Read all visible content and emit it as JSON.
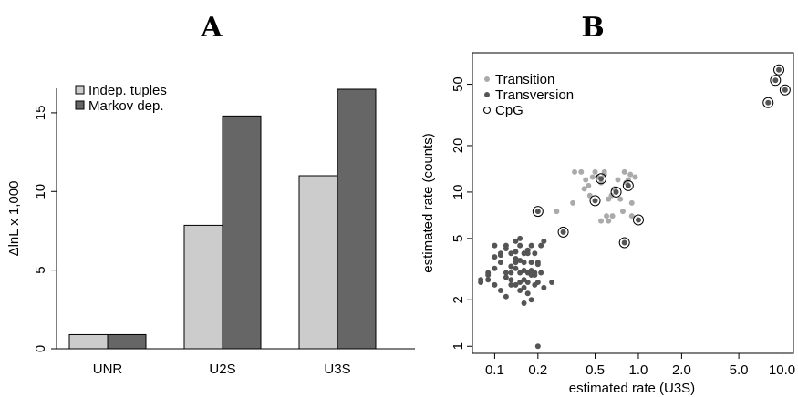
{
  "panels": {
    "a_label": "A",
    "b_label": "B"
  },
  "chart_data": [
    {
      "type": "bar",
      "panel": "A",
      "categories": [
        "UNR",
        "U2S",
        "U3S"
      ],
      "series": [
        {
          "name": "Indep. tuples",
          "values": [
            0.9,
            7.85,
            11.0
          ],
          "color": "#cccccc"
        },
        {
          "name": "Markov dep.",
          "values": [
            0.9,
            14.8,
            16.5
          ],
          "color": "#666666"
        }
      ],
      "ylabel": "ΔlnL x 1,000",
      "ylim": [
        0,
        16.5
      ],
      "yticks": [
        "0",
        "5",
        "10",
        "15"
      ],
      "grid": false,
      "legend_position": "top-left"
    },
    {
      "type": "scatter",
      "panel": "B",
      "xlabel": "estimated rate (U3S)",
      "ylabel": "estimated rate (counts)",
      "xscale": "log",
      "yscale": "log",
      "xlim": [
        0.07,
        12
      ],
      "ylim": [
        0.9,
        80
      ],
      "xticks": [
        "0.1",
        "0.2",
        "0.5",
        "1.0",
        "2.0",
        "5.0",
        "10.0"
      ],
      "yticks": [
        "1",
        "2",
        "5",
        "10",
        "20",
        "50"
      ],
      "grid": false,
      "legend_position": "top-left",
      "colors": {
        "transition": "#aaaaaa",
        "transversion": "#555555",
        "cpg_ring": "#000000"
      },
      "series": [
        {
          "name": "Transition",
          "marker": "filled-circle",
          "color": "#aaaaaa",
          "x": [
            0.35,
            0.36,
            0.4,
            0.42,
            0.45,
            0.46,
            0.48,
            0.5,
            0.52,
            0.55,
            0.58,
            0.6,
            0.62,
            0.65,
            0.68,
            0.7,
            0.75,
            0.78,
            0.8,
            0.82,
            0.85,
            0.88,
            0.9,
            0.95,
            0.43,
            0.55,
            0.62,
            0.72,
            0.9,
            0.58,
            0.66,
            0.27
          ],
          "y": [
            8.5,
            13.5,
            13.5,
            10.5,
            11.0,
            9.5,
            12.5,
            13.5,
            12.5,
            11.5,
            13.5,
            7.0,
            6.5,
            9.5,
            10.5,
            10.0,
            9.0,
            7.5,
            13.5,
            11.5,
            12.0,
            13.0,
            8.5,
            12.5,
            12.0,
            6.5,
            9.0,
            12.0,
            7.0,
            13.0,
            7.0,
            7.5
          ]
        },
        {
          "name": "Transversion",
          "marker": "filled-circle",
          "color": "#555555",
          "x": [
            0.08,
            0.08,
            0.09,
            0.09,
            0.1,
            0.1,
            0.1,
            0.11,
            0.11,
            0.11,
            0.12,
            0.12,
            0.12,
            0.13,
            0.13,
            0.13,
            0.14,
            0.14,
            0.14,
            0.14,
            0.15,
            0.15,
            0.15,
            0.15,
            0.16,
            0.16,
            0.16,
            0.16,
            0.17,
            0.17,
            0.17,
            0.17,
            0.18,
            0.18,
            0.18,
            0.18,
            0.19,
            0.19,
            0.19,
            0.2,
            0.2,
            0.2,
            0.21,
            0.21,
            0.22,
            0.22,
            0.25,
            0.1,
            0.12,
            0.13,
            0.15,
            0.17,
            0.19,
            0.14,
            0.16,
            0.11,
            0.13,
            0.09,
            0.2,
            0.15,
            0.18,
            0.12,
            0.14,
            0.16
          ],
          "y": [
            2.6,
            2.7,
            2.7,
            3.0,
            2.5,
            3.2,
            4.5,
            4.0,
            3.5,
            2.3,
            4.5,
            3.0,
            2.1,
            2.5,
            3.0,
            4.0,
            3.5,
            2.5,
            4.8,
            3.2,
            3.0,
            4.5,
            2.3,
            5.0,
            4.0,
            3.5,
            2.7,
            1.9,
            3.0,
            4.0,
            2.6,
            2.2,
            3.5,
            2.9,
            4.5,
            2.0,
            3.0,
            2.5,
            4.0,
            2.6,
            3.5,
            1.0,
            4.5,
            3.0,
            4.8,
            2.4,
            2.6,
            3.8,
            2.8,
            3.3,
            3.6,
            4.2,
            2.9,
            4.1,
            3.1,
            3.9,
            2.7,
            2.9,
            3.4,
            2.6,
            3.1,
            4.3,
            3.7,
            2.4
          ]
        },
        {
          "name": "CpG",
          "marker": "open-circle",
          "color": "#000000",
          "x": [
            0.2,
            0.3,
            0.5,
            0.55,
            0.7,
            0.8,
            0.85,
            1.0,
            8.0,
            9.0,
            9.5,
            10.5
          ],
          "y": [
            7.5,
            5.5,
            8.8,
            12.2,
            10.0,
            4.7,
            11.0,
            6.6,
            38.0,
            53.0,
            62.0,
            46.0
          ],
          "overlay_color": [
            "#555555",
            "#555555",
            "#555555",
            "#555555",
            "#555555",
            "#555555",
            "#555555",
            "#555555",
            "#555555",
            "#555555",
            "#555555",
            "#555555"
          ]
        }
      ]
    }
  ]
}
